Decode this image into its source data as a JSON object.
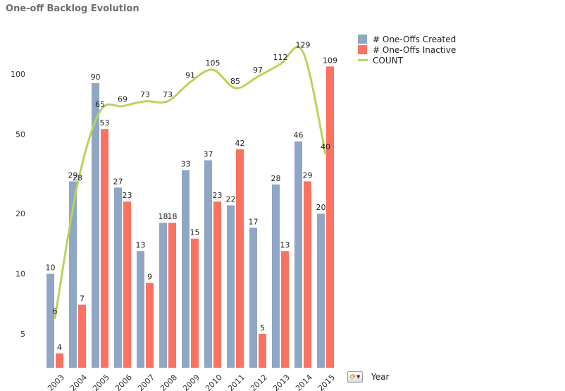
{
  "chart_data": {
    "type": "bar",
    "title": "One-off Backlog Evolution",
    "xlabel": "Year",
    "ylabel": "",
    "yscale": "log",
    "ylim": [
      3.5,
      150
    ],
    "yticks": [
      5,
      10,
      20,
      50,
      100
    ],
    "categories": [
      "2003",
      "2004",
      "2005",
      "2006",
      "2007",
      "2008",
      "2009",
      "2010",
      "2011",
      "2012",
      "2013",
      "2014",
      "2015"
    ],
    "series": [
      {
        "name": "# One-Offs Created",
        "kind": "bar",
        "color": "#8fa6c4",
        "values": [
          10,
          29,
          90,
          27,
          13,
          18,
          33,
          37,
          22,
          17,
          28,
          46,
          20
        ]
      },
      {
        "name": "# One-Offs Inactive",
        "kind": "bar",
        "color": "#fc7260",
        "values": [
          4,
          7,
          53,
          23,
          9,
          18,
          15,
          23,
          42,
          5,
          13,
          29,
          109
        ]
      },
      {
        "name": "COUNT",
        "kind": "line",
        "color": "#b8d45a",
        "values": [
          6,
          28,
          65,
          69,
          73,
          73,
          91,
          105,
          85,
          97,
          112,
          129,
          40
        ]
      }
    ],
    "legend": "top-right"
  }
}
